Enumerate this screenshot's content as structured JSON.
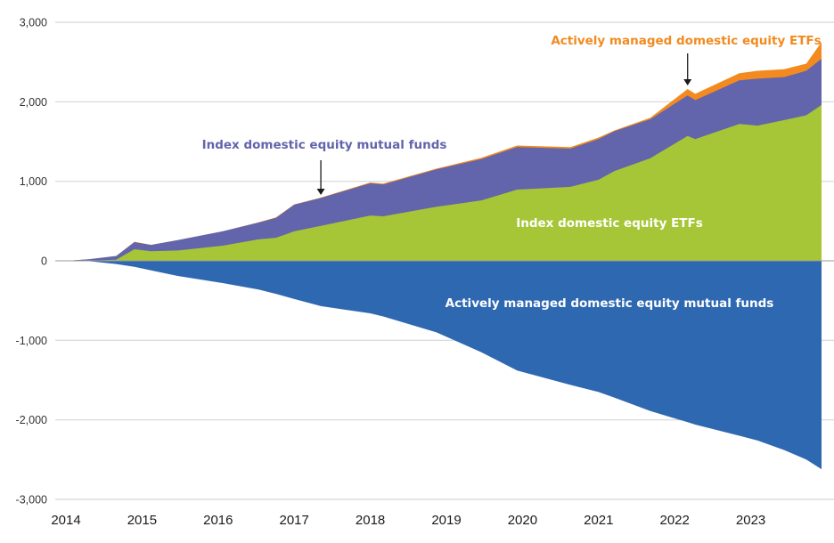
{
  "chart_data": {
    "type": "area",
    "title": "",
    "xlabel": "",
    "ylabel": "",
    "stacked": true,
    "ylim": [
      -3000,
      3000
    ],
    "xlim": [
      2014,
      2024
    ],
    "yticks": [
      3000,
      2000,
      1000,
      0,
      -1000,
      -2000,
      -3000
    ],
    "ytick_labels": [
      "3,000",
      "2,000",
      "1,000",
      "0",
      "-1,000",
      "-2,000",
      "-3,000"
    ],
    "xticks": [
      2014,
      2015,
      2016,
      2017,
      2018,
      2019,
      2020,
      2021,
      2022,
      2023
    ],
    "xtick_labels": [
      "2014",
      "2015",
      "2016",
      "2017",
      "2018",
      "2019",
      "2020",
      "2021",
      "2022",
      "2023"
    ],
    "grid": true,
    "x": [
      2014.0,
      2014.3,
      2014.66,
      2014.9,
      2015.12,
      2015.47,
      2016.06,
      2016.53,
      2016.76,
      2017.0,
      2017.35,
      2018.0,
      2018.17,
      2018.87,
      2019.46,
      2019.93,
      2020.63,
      2021.0,
      2021.21,
      2021.68,
      2022.17,
      2022.27,
      2022.85,
      2023.09,
      2023.44,
      2023.73,
      2023.93
    ],
    "series": [
      {
        "name": "Index domestic equity ETFs",
        "color": "#a6c637",
        "values": [
          0,
          0,
          15,
          145,
          120,
          130,
          190,
          270,
          290,
          370,
          440,
          570,
          560,
          680,
          760,
          895,
          930,
          1020,
          1130,
          1290,
          1570,
          1530,
          1720,
          1700,
          1770,
          1830,
          1960
        ]
      },
      {
        "name": "Index domestic equity mutual funds",
        "color": "#6264ac",
        "values": [
          0,
          20,
          45,
          90,
          80,
          130,
          180,
          210,
          250,
          335,
          350,
          405,
          400,
          470,
          520,
          535,
          480,
          510,
          500,
          490,
          510,
          490,
          550,
          590,
          540,
          560,
          580
        ]
      },
      {
        "name": "Actively managed domestic equity ETFs",
        "color": "#f28a1f",
        "values": [
          0,
          0,
          0,
          5,
          0,
          0,
          0,
          5,
          5,
          5,
          5,
          10,
          10,
          10,
          15,
          20,
          20,
          20,
          10,
          20,
          80,
          80,
          90,
          100,
          100,
          90,
          210
        ]
      },
      {
        "name": "Actively managed domestic equity mutual funds",
        "color": "#2e68b1",
        "values": [
          0,
          -5,
          -40,
          -75,
          -120,
          -190,
          -280,
          -360,
          -415,
          -480,
          -570,
          -660,
          -700,
          -900,
          -1150,
          -1380,
          -1560,
          -1650,
          -1720,
          -1890,
          -2030,
          -2060,
          -2200,
          -2260,
          -2380,
          -2500,
          -2620
        ]
      }
    ],
    "annotations": [
      {
        "text": "Actively managed domestic equity ETFs",
        "color": "#f28a1f",
        "arrow_to_x": 2022.17
      },
      {
        "text": "Index domestic equity mutual funds",
        "color": "#6264ac",
        "arrow_to_x": 2017.35
      },
      {
        "text": "Index domestic equity ETFs",
        "color": "#ffffff"
      },
      {
        "text": "Actively managed domestic equity mutual funds",
        "color": "#ffffff"
      }
    ]
  }
}
